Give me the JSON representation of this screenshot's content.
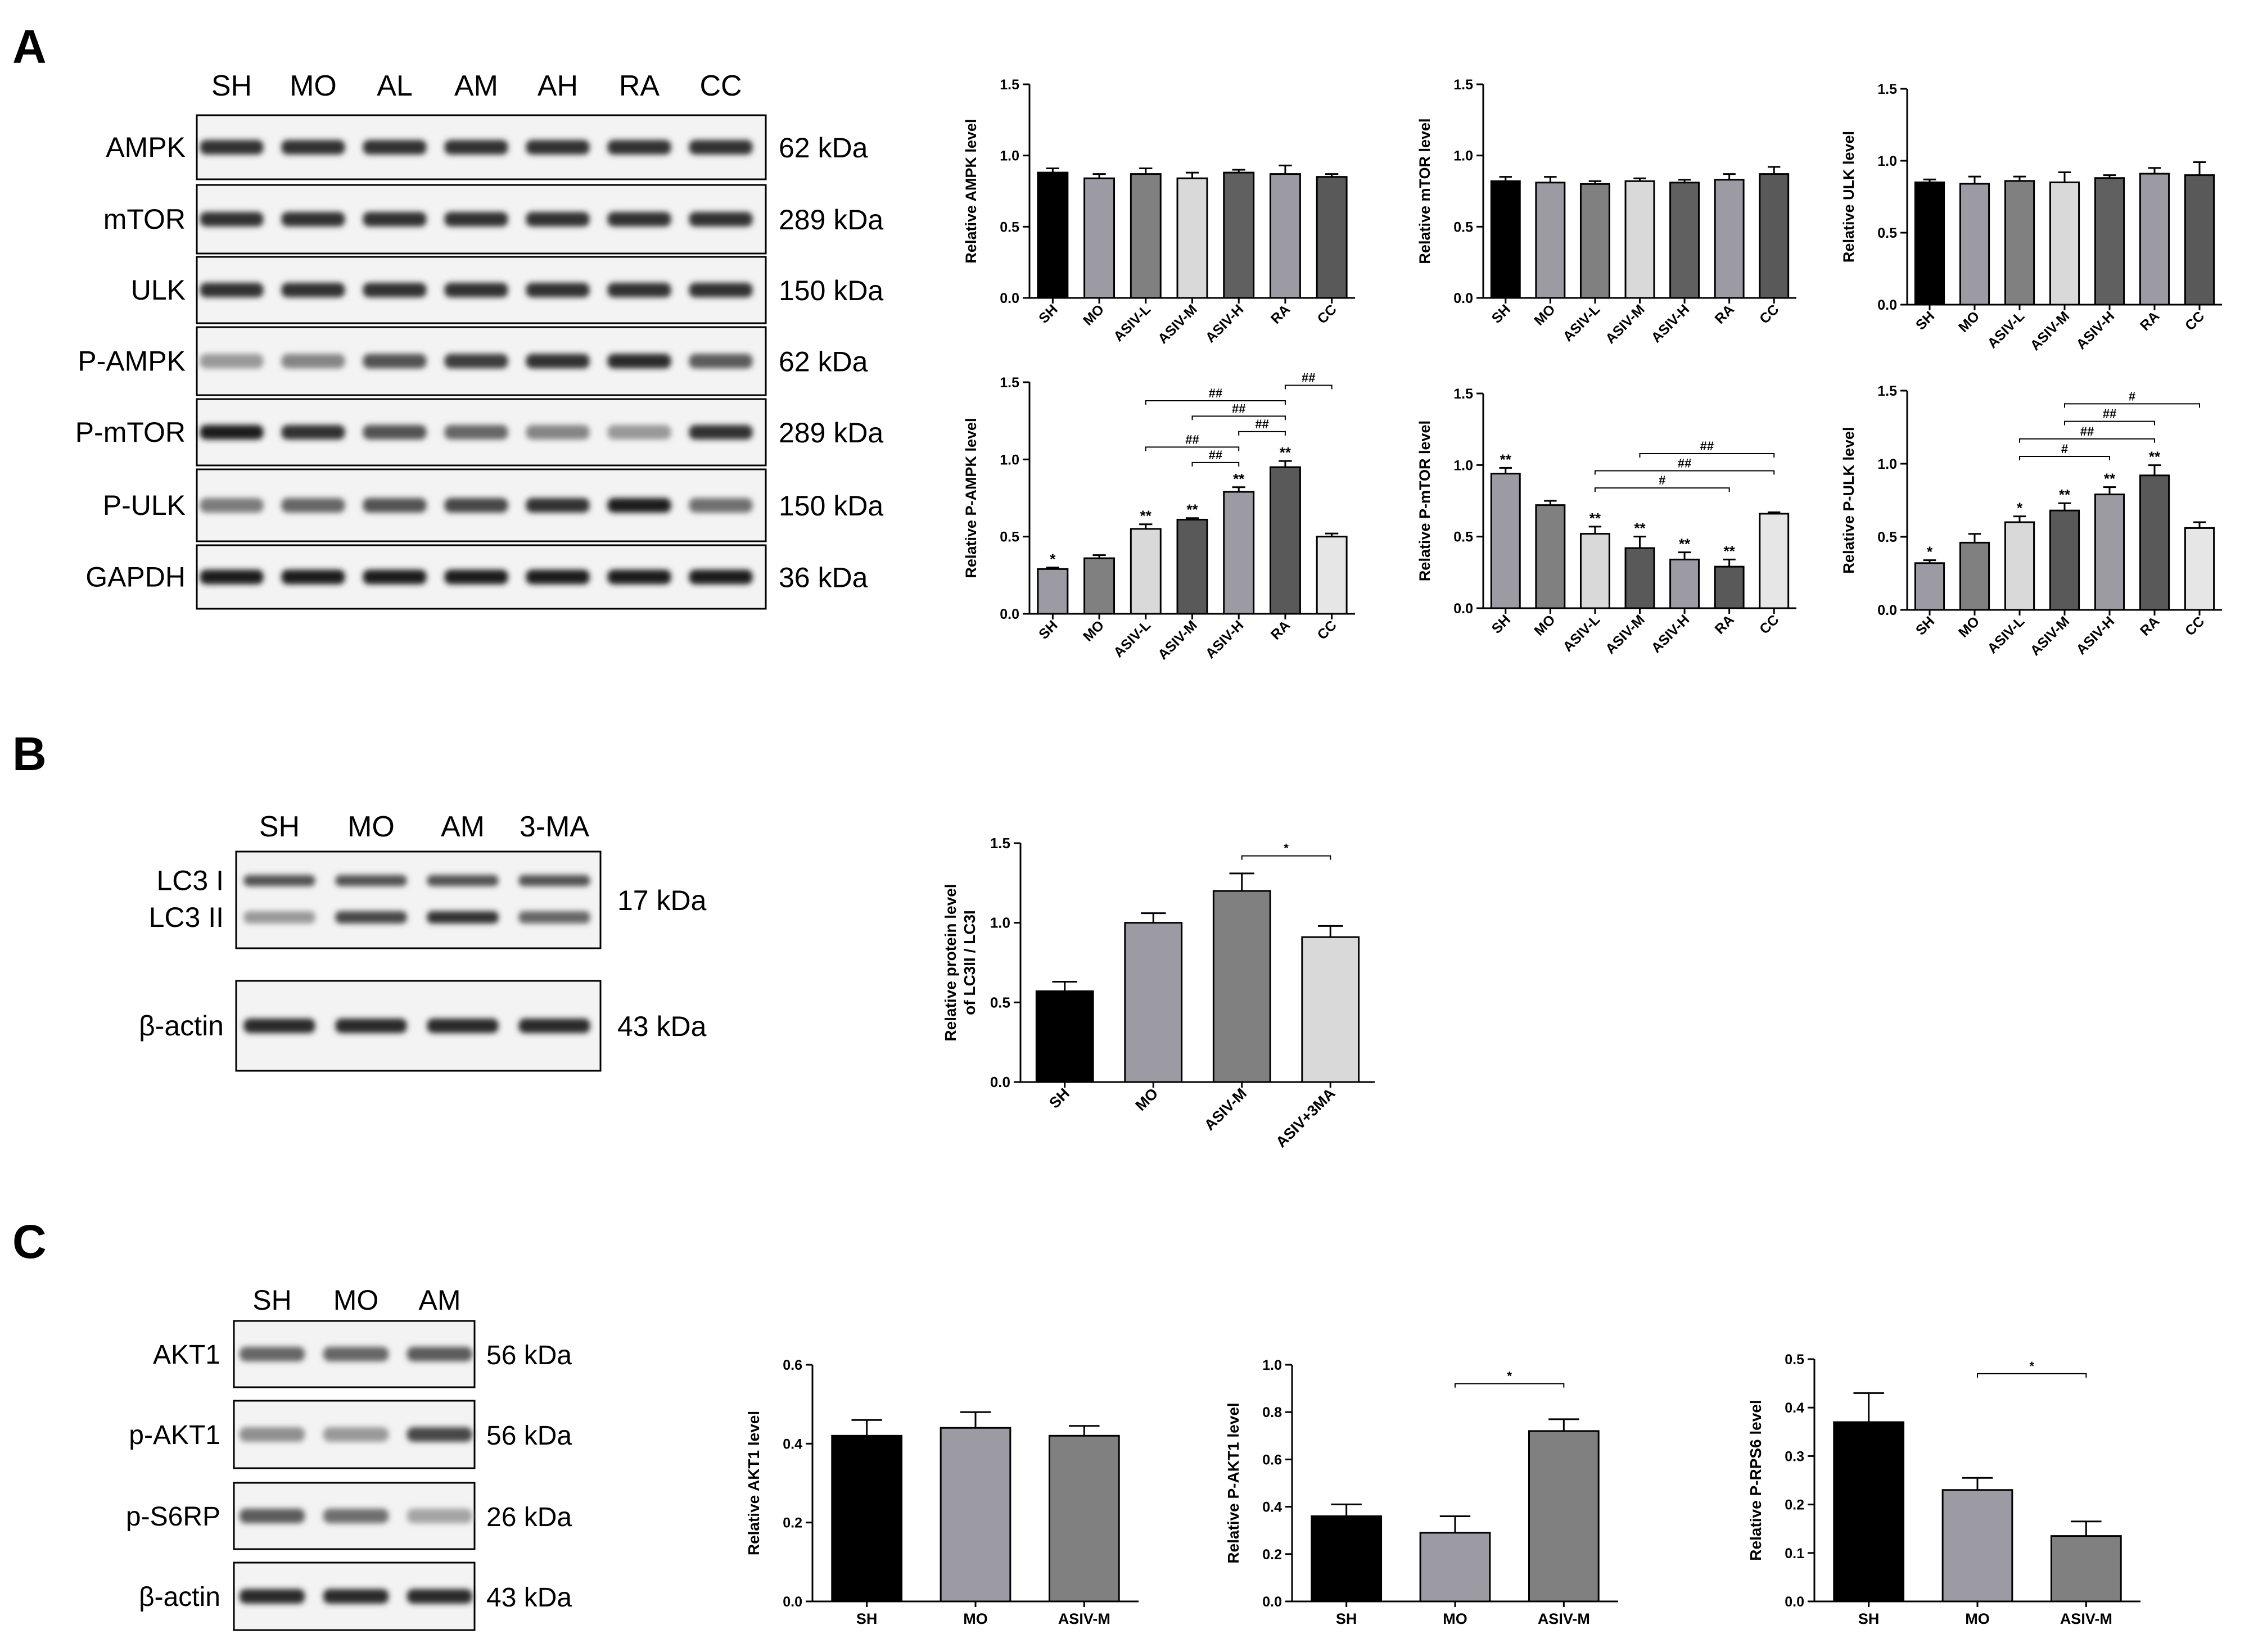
{
  "panels": {
    "a": {
      "letter": "A",
      "blot": {
        "lanes": [
          "SH",
          "MO",
          "AL",
          "AM",
          "AH",
          "RA",
          "CC"
        ],
        "rows": [
          {
            "label": "AMPK",
            "kda": "62 kDa",
            "band_intensity": [
              0.85,
              0.85,
              0.85,
              0.85,
              0.85,
              0.85,
              0.85
            ],
            "double": false
          },
          {
            "label": "mTOR",
            "kda": "289 kDa",
            "band_intensity": [
              0.85,
              0.85,
              0.85,
              0.85,
              0.85,
              0.85,
              0.85
            ],
            "double": false
          },
          {
            "label": "ULK",
            "kda": "150 kDa",
            "band_intensity": [
              0.85,
              0.85,
              0.85,
              0.85,
              0.85,
              0.85,
              0.85
            ],
            "double": false
          },
          {
            "label": "P-AMPK",
            "kda": "62 kDa",
            "band_intensity": [
              0.35,
              0.45,
              0.7,
              0.8,
              0.85,
              0.9,
              0.65
            ],
            "double": false
          },
          {
            "label": "P-mTOR",
            "kda": "289 kDa",
            "band_intensity": [
              0.95,
              0.85,
              0.7,
              0.6,
              0.45,
              0.35,
              0.85
            ],
            "double": false
          },
          {
            "label": "P-ULK",
            "kda": "150 kDa",
            "band_intensity": [
              0.5,
              0.6,
              0.7,
              0.75,
              0.85,
              0.95,
              0.55
            ],
            "double": false
          },
          {
            "label": "GAPDH",
            "kda": "36 kDa",
            "band_intensity": [
              0.95,
              0.95,
              0.95,
              0.95,
              0.95,
              0.95,
              0.95
            ],
            "double": false
          }
        ]
      }
    },
    "b": {
      "letter": "B",
      "blot": {
        "lanes": [
          "SH",
          "MO",
          "AM",
          "3-MA"
        ],
        "rows": [
          {
            "label": "LC3 I",
            "label2": "LC3 II",
            "kda": "17 kDa",
            "band_intensity": [
              0.7,
              0.7,
              0.7,
              0.7
            ],
            "band_intensity2": [
              0.35,
              0.75,
              0.85,
              0.6
            ],
            "double": true
          },
          {
            "label": "β-actin",
            "kda": "43 kDa",
            "band_intensity": [
              0.9,
              0.9,
              0.9,
              0.9
            ],
            "double": false
          }
        ]
      }
    },
    "c": {
      "letter": "C",
      "blot": {
        "lanes": [
          "SH",
          "MO",
          "AM"
        ],
        "rows": [
          {
            "label": "AKT1",
            "kda": "56 kDa",
            "band_intensity": [
              0.6,
              0.6,
              0.65
            ],
            "double": false
          },
          {
            "label": "p-AKT1",
            "kda": "56 kDa",
            "band_intensity": [
              0.4,
              0.35,
              0.75
            ],
            "double": false
          },
          {
            "label": "p-S6RP",
            "kda": "26 kDa",
            "band_intensity": [
              0.65,
              0.55,
              0.3
            ],
            "double": false
          },
          {
            "label": "β-actin",
            "kda": "43 kDa",
            "band_intensity": [
              0.9,
              0.9,
              0.9
            ],
            "double": false
          }
        ]
      }
    }
  },
  "chart_data": [
    {
      "id": "a-ampk",
      "type": "bar",
      "categories": [
        "SH",
        "MO",
        "ASIV-L",
        "ASIV-M",
        "ASIV-H",
        "RA",
        "CC"
      ],
      "values": [
        0.88,
        0.84,
        0.87,
        0.84,
        0.88,
        0.87,
        0.85
      ],
      "errors": [
        0.03,
        0.03,
        0.04,
        0.04,
        0.02,
        0.06,
        0.02
      ],
      "colors": [
        "#000000",
        "#9c9ba3",
        "#808080",
        "#d9d9d9",
        "#606060",
        "#9c9ba3",
        "#595959"
      ],
      "ylabel": "Relative AMPK level",
      "ylim": [
        0,
        1.5
      ],
      "yticks": [
        "0.0",
        "0.5",
        "1.0",
        "1.5"
      ],
      "bar_marks": [],
      "brackets": []
    },
    {
      "id": "a-mtor",
      "type": "bar",
      "categories": [
        "SH",
        "MO",
        "ASIV-L",
        "ASIV-M",
        "ASIV-H",
        "RA",
        "CC"
      ],
      "values": [
        0.82,
        0.81,
        0.8,
        0.82,
        0.81,
        0.83,
        0.87
      ],
      "errors": [
        0.03,
        0.04,
        0.02,
        0.02,
        0.02,
        0.04,
        0.05
      ],
      "colors": [
        "#000000",
        "#9c9ba3",
        "#808080",
        "#d9d9d9",
        "#606060",
        "#9c9ba3",
        "#595959"
      ],
      "ylabel": "Relative mTOR level",
      "ylim": [
        0,
        1.5
      ],
      "yticks": [
        "0.0",
        "0.5",
        "1.0",
        "1.5"
      ],
      "bar_marks": [],
      "brackets": []
    },
    {
      "id": "a-ulk",
      "type": "bar",
      "categories": [
        "SH",
        "MO",
        "ASIV-L",
        "ASIV-M",
        "ASIV-H",
        "RA",
        "CC"
      ],
      "values": [
        0.85,
        0.84,
        0.86,
        0.85,
        0.88,
        0.91,
        0.9
      ],
      "errors": [
        0.02,
        0.05,
        0.03,
        0.07,
        0.02,
        0.04,
        0.09
      ],
      "colors": [
        "#000000",
        "#9c9ba3",
        "#808080",
        "#d9d9d9",
        "#606060",
        "#9c9ba3",
        "#595959"
      ],
      "ylabel": "Relative ULK level",
      "ylim": [
        0,
        1.5
      ],
      "yticks": [
        "0.0",
        "0.5",
        "1.0",
        "1.5"
      ],
      "bar_marks": [],
      "brackets": []
    },
    {
      "id": "a-pampk",
      "type": "bar",
      "categories": [
        "SH",
        "MO",
        "ASIV-L",
        "ASIV-M",
        "ASIV-H",
        "RA",
        "CC"
      ],
      "values": [
        0.29,
        0.36,
        0.55,
        0.61,
        0.79,
        0.95,
        0.5
      ],
      "errors": [
        0.01,
        0.02,
        0.03,
        0.01,
        0.03,
        0.04,
        0.02
      ],
      "colors": [
        "#9c9ba3",
        "#808080",
        "#d9d9d9",
        "#595959",
        "#9c9ba3",
        "#595959",
        "#e6e6e6"
      ],
      "ylabel": "Relative P-AMPK level",
      "ylim": [
        0,
        1.5
      ],
      "yticks": [
        "0.0",
        "0.5",
        "1.0",
        "1.5"
      ],
      "bar_marks": [
        "*",
        "",
        "**",
        "**",
        "**",
        "**",
        ""
      ],
      "brackets": [
        {
          "from": 3,
          "to": 4,
          "y": 0.98,
          "text": "##"
        },
        {
          "from": 2,
          "to": 4,
          "y": 1.08,
          "text": "##"
        },
        {
          "from": 4,
          "to": 5,
          "y": 1.18,
          "text": "##"
        },
        {
          "from": 3,
          "to": 5,
          "y": 1.28,
          "text": "##"
        },
        {
          "from": 2,
          "to": 5,
          "y": 1.38,
          "text": "##"
        },
        {
          "from": 5,
          "to": 6,
          "y": 1.48,
          "text": "##"
        }
      ]
    },
    {
      "id": "a-pmtor",
      "type": "bar",
      "categories": [
        "SH",
        "MO",
        "ASIV-L",
        "ASIV-M",
        "ASIV-H",
        "RA",
        "CC"
      ],
      "values": [
        0.94,
        0.72,
        0.52,
        0.42,
        0.34,
        0.29,
        0.66
      ],
      "errors": [
        0.04,
        0.03,
        0.05,
        0.08,
        0.05,
        0.05,
        0.01
      ],
      "colors": [
        "#9c9ba3",
        "#808080",
        "#d9d9d9",
        "#595959",
        "#9c9ba3",
        "#595959",
        "#e6e6e6"
      ],
      "ylabel": "Relative P-mTOR level",
      "ylim": [
        0,
        1.5
      ],
      "yticks": [
        "0.0",
        "0.5",
        "1.0",
        "1.5"
      ],
      "bar_marks": [
        "**",
        "",
        "**",
        "**",
        "**",
        "**",
        ""
      ],
      "brackets": [
        {
          "from": 2,
          "to": 5,
          "y": 0.84,
          "text": "#"
        },
        {
          "from": 2,
          "to": 6,
          "y": 0.96,
          "text": "##"
        },
        {
          "from": 3,
          "to": 6,
          "y": 1.08,
          "text": "##"
        }
      ]
    },
    {
      "id": "a-pulk",
      "type": "bar",
      "categories": [
        "SH",
        "MO",
        "ASIV-L",
        "ASIV-M",
        "ASIV-H",
        "RA",
        "CC"
      ],
      "values": [
        0.32,
        0.46,
        0.6,
        0.68,
        0.79,
        0.92,
        0.56
      ],
      "errors": [
        0.02,
        0.06,
        0.04,
        0.05,
        0.05,
        0.07,
        0.04
      ],
      "colors": [
        "#9c9ba3",
        "#808080",
        "#d9d9d9",
        "#595959",
        "#9c9ba3",
        "#595959",
        "#e6e6e6"
      ],
      "ylabel": "Relative P-ULK level",
      "ylim": [
        0,
        1.5
      ],
      "yticks": [
        "0.0",
        "0.5",
        "1.0",
        "1.5"
      ],
      "bar_marks": [
        "*",
        "",
        "*",
        "**",
        "**",
        "**",
        ""
      ],
      "brackets": [
        {
          "from": 2,
          "to": 4,
          "y": 1.05,
          "text": "#"
        },
        {
          "from": 2,
          "to": 5,
          "y": 1.17,
          "text": "##"
        },
        {
          "from": 3,
          "to": 5,
          "y": 1.29,
          "text": "##"
        },
        {
          "from": 3,
          "to": 6,
          "y": 1.41,
          "text": "#"
        }
      ]
    },
    {
      "id": "b-lc3",
      "type": "bar",
      "categories": [
        "SH",
        "MO",
        "ASIV-M",
        "ASIV+3MA"
      ],
      "values": [
        0.57,
        1.0,
        1.2,
        0.91
      ],
      "errors": [
        0.06,
        0.06,
        0.11,
        0.07
      ],
      "colors": [
        "#000000",
        "#9c9ba3",
        "#808080",
        "#d9d9d9"
      ],
      "ylabel": "Relative protein level",
      "ylabel2": "of LC3II / LC3I",
      "ylim": [
        0,
        1.5
      ],
      "yticks": [
        "0.0",
        "0.5",
        "1.0",
        "1.5"
      ],
      "bar_marks": [],
      "brackets": [
        {
          "from": 2,
          "to": 3,
          "y": 1.42,
          "text": "*"
        }
      ]
    },
    {
      "id": "c-akt1",
      "type": "bar",
      "categories": [
        "SH",
        "MO",
        "ASIV-M"
      ],
      "values": [
        0.42,
        0.44,
        0.42
      ],
      "errors": [
        0.04,
        0.04,
        0.025
      ],
      "colors": [
        "#000000",
        "#9c9ba3",
        "#808080"
      ],
      "ylabel": "Relative AKT1 level",
      "ylim": [
        0,
        0.6
      ],
      "yticks": [
        "0.0",
        "0.2",
        "0.4",
        "0.6"
      ],
      "bar_marks": [],
      "brackets": []
    },
    {
      "id": "c-pakt1",
      "type": "bar",
      "categories": [
        "SH",
        "MO",
        "ASIV-M"
      ],
      "values": [
        0.36,
        0.29,
        0.72
      ],
      "errors": [
        0.05,
        0.07,
        0.05
      ],
      "colors": [
        "#000000",
        "#9c9ba3",
        "#808080"
      ],
      "ylabel": "Relative P-AKT1 level",
      "ylim": [
        0,
        1.0
      ],
      "yticks": [
        "0.0",
        "0.2",
        "0.4",
        "0.6",
        "0.8",
        "1.0"
      ],
      "bar_marks": [],
      "brackets": [
        {
          "from": 1,
          "to": 2,
          "y": 0.92,
          "text": "*"
        }
      ]
    },
    {
      "id": "c-prps6",
      "type": "bar",
      "categories": [
        "SH",
        "MO",
        "ASIV-M"
      ],
      "values": [
        0.37,
        0.23,
        0.135
      ],
      "errors": [
        0.06,
        0.025,
        0.03
      ],
      "colors": [
        "#000000",
        "#9c9ba3",
        "#808080"
      ],
      "ylabel": "Relative P-RPS6 level",
      "ylim": [
        0,
        0.5
      ],
      "yticks": [
        "0.0",
        "0.1",
        "0.2",
        "0.3",
        "0.4",
        "0.5"
      ],
      "bar_marks": [],
      "brackets": [
        {
          "from": 1,
          "to": 2,
          "y": 0.47,
          "text": "*"
        }
      ]
    }
  ]
}
